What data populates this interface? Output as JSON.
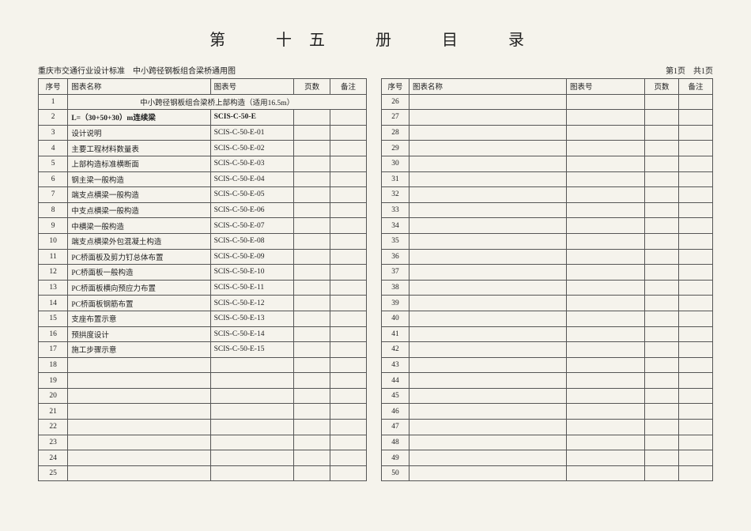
{
  "title": "第　十五　册　目　录",
  "header_left": "重庆市交通行业设计标准　中小跨径钢板组合梁桥通用图",
  "header_right": "第1页　共1页",
  "cols_left": {
    "seq": "序号",
    "name": "图表名称",
    "code": "图表号",
    "page": "页数",
    "note": "备注"
  },
  "cols_right": {
    "seq": "序号",
    "name": "图表名称",
    "code": "图表号",
    "page": "页数",
    "note": "备注"
  },
  "left_rows": [
    {
      "seq": "1",
      "name": "中小跨径钢板组合梁桥上部构造（适用16.5m）",
      "code": "",
      "page": "",
      "note": "",
      "center": true
    },
    {
      "seq": "2",
      "name": "L=（30+50+30）m连续梁",
      "code": "SCIS-C-50-E",
      "page": "",
      "note": "",
      "bold": true
    },
    {
      "seq": "3",
      "name": "设计说明",
      "code": "SCIS-C-50-E-01",
      "page": "",
      "note": ""
    },
    {
      "seq": "4",
      "name": "主要工程材料数量表",
      "code": "SCIS-C-50-E-02",
      "page": "",
      "note": ""
    },
    {
      "seq": "5",
      "name": "上部构造标准横断面",
      "code": "SCIS-C-50-E-03",
      "page": "",
      "note": ""
    },
    {
      "seq": "6",
      "name": "钢主梁一般构造",
      "code": "SCIS-C-50-E-04",
      "page": "",
      "note": ""
    },
    {
      "seq": "7",
      "name": "端支点横梁一般构造",
      "code": "SCIS-C-50-E-05",
      "page": "",
      "note": ""
    },
    {
      "seq": "8",
      "name": "中支点横梁一般构造",
      "code": "SCIS-C-50-E-06",
      "page": "",
      "note": ""
    },
    {
      "seq": "9",
      "name": "中横梁一般构造",
      "code": "SCIS-C-50-E-07",
      "page": "",
      "note": ""
    },
    {
      "seq": "10",
      "name": "端支点横梁外包混凝土构造",
      "code": "SCIS-C-50-E-08",
      "page": "",
      "note": ""
    },
    {
      "seq": "11",
      "name": "PC桥面板及剪力钉总体布置",
      "code": "SCIS-C-50-E-09",
      "page": "",
      "note": ""
    },
    {
      "seq": "12",
      "name": "PC桥面板一般构造",
      "code": "SCIS-C-50-E-10",
      "page": "",
      "note": ""
    },
    {
      "seq": "13",
      "name": "PC桥面板横向预应力布置",
      "code": "SCIS-C-50-E-11",
      "page": "",
      "note": ""
    },
    {
      "seq": "14",
      "name": "PC桥面板钢筋布置",
      "code": "SCIS-C-50-E-12",
      "page": "",
      "note": ""
    },
    {
      "seq": "15",
      "name": "支座布置示意",
      "code": "SCIS-C-50-E-13",
      "page": "",
      "note": ""
    },
    {
      "seq": "16",
      "name": "预拱度设计",
      "code": "SCIS-C-50-E-14",
      "page": "",
      "note": ""
    },
    {
      "seq": "17",
      "name": "施工步骤示意",
      "code": "SCIS-C-50-E-15",
      "page": "",
      "note": ""
    },
    {
      "seq": "18",
      "name": "",
      "code": "",
      "page": "",
      "note": ""
    },
    {
      "seq": "19",
      "name": "",
      "code": "",
      "page": "",
      "note": ""
    },
    {
      "seq": "20",
      "name": "",
      "code": "",
      "page": "",
      "note": ""
    },
    {
      "seq": "21",
      "name": "",
      "code": "",
      "page": "",
      "note": ""
    },
    {
      "seq": "22",
      "name": "",
      "code": "",
      "page": "",
      "note": ""
    },
    {
      "seq": "23",
      "name": "",
      "code": "",
      "page": "",
      "note": ""
    },
    {
      "seq": "24",
      "name": "",
      "code": "",
      "page": "",
      "note": ""
    },
    {
      "seq": "25",
      "name": "",
      "code": "",
      "page": "",
      "note": ""
    }
  ],
  "right_rows": [
    {
      "seq": "26",
      "name": "",
      "code": "",
      "page": "",
      "note": ""
    },
    {
      "seq": "27",
      "name": "",
      "code": "",
      "page": "",
      "note": ""
    },
    {
      "seq": "28",
      "name": "",
      "code": "",
      "page": "",
      "note": ""
    },
    {
      "seq": "29",
      "name": "",
      "code": "",
      "page": "",
      "note": ""
    },
    {
      "seq": "30",
      "name": "",
      "code": "",
      "page": "",
      "note": ""
    },
    {
      "seq": "31",
      "name": "",
      "code": "",
      "page": "",
      "note": ""
    },
    {
      "seq": "32",
      "name": "",
      "code": "",
      "page": "",
      "note": ""
    },
    {
      "seq": "33",
      "name": "",
      "code": "",
      "page": "",
      "note": ""
    },
    {
      "seq": "34",
      "name": "",
      "code": "",
      "page": "",
      "note": ""
    },
    {
      "seq": "35",
      "name": "",
      "code": "",
      "page": "",
      "note": ""
    },
    {
      "seq": "36",
      "name": "",
      "code": "",
      "page": "",
      "note": ""
    },
    {
      "seq": "37",
      "name": "",
      "code": "",
      "page": "",
      "note": ""
    },
    {
      "seq": "38",
      "name": "",
      "code": "",
      "page": "",
      "note": ""
    },
    {
      "seq": "39",
      "name": "",
      "code": "",
      "page": "",
      "note": ""
    },
    {
      "seq": "40",
      "name": "",
      "code": "",
      "page": "",
      "note": ""
    },
    {
      "seq": "41",
      "name": "",
      "code": "",
      "page": "",
      "note": ""
    },
    {
      "seq": "42",
      "name": "",
      "code": "",
      "page": "",
      "note": ""
    },
    {
      "seq": "43",
      "name": "",
      "code": "",
      "page": "",
      "note": ""
    },
    {
      "seq": "44",
      "name": "",
      "code": "",
      "page": "",
      "note": ""
    },
    {
      "seq": "45",
      "name": "",
      "code": "",
      "page": "",
      "note": ""
    },
    {
      "seq": "46",
      "name": "",
      "code": "",
      "page": "",
      "note": ""
    },
    {
      "seq": "47",
      "name": "",
      "code": "",
      "page": "",
      "note": ""
    },
    {
      "seq": "48",
      "name": "",
      "code": "",
      "page": "",
      "note": ""
    },
    {
      "seq": "49",
      "name": "",
      "code": "",
      "page": "",
      "note": ""
    },
    {
      "seq": "50",
      "name": "",
      "code": "",
      "page": "",
      "note": ""
    }
  ]
}
